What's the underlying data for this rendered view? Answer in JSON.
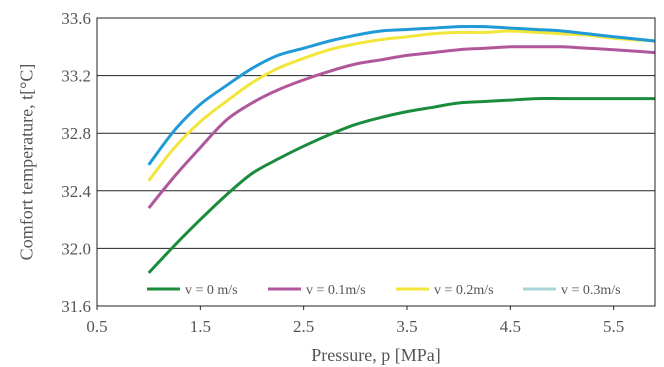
{
  "chart_data": {
    "type": "line",
    "title": "",
    "xlabel": "Pressure, p [MPa]",
    "ylabel": "Comfort temperature, t[°C]",
    "xlim": [
      0.5,
      5.9
    ],
    "ylim": [
      31.6,
      33.6
    ],
    "xticks": [
      0.5,
      1.5,
      2.5,
      3.5,
      4.5,
      5.5
    ],
    "xtick_labels": [
      "0.5",
      "1.5",
      "2.5",
      "3.5",
      "4.5",
      "5.5"
    ],
    "yticks": [
      31.6,
      32.0,
      32.4,
      32.8,
      33.2,
      33.6
    ],
    "ytick_labels": [
      "31.6",
      "32.0",
      "32.4",
      "32.8",
      "33.2",
      "33.6"
    ],
    "grid": "horizontal",
    "legend_position": "bottom-inside",
    "x": [
      1.0,
      1.25,
      1.5,
      1.75,
      2.0,
      2.25,
      2.5,
      2.75,
      3.0,
      3.25,
      3.5,
      3.75,
      4.0,
      4.25,
      4.5,
      4.75,
      5.0,
      5.25,
      5.5,
      5.9
    ],
    "series": [
      {
        "name": "v = 0 m/s",
        "color": "#1a8c3c",
        "values": [
          31.83,
          32.02,
          32.2,
          32.37,
          32.52,
          32.62,
          32.71,
          32.79,
          32.86,
          32.91,
          32.95,
          32.98,
          33.01,
          33.02,
          33.03,
          33.04,
          33.04,
          33.04,
          33.04,
          33.04
        ]
      },
      {
        "name": "v = 0.1m/s",
        "color": "#b0579c",
        "values": [
          32.28,
          32.5,
          32.7,
          32.89,
          33.01,
          33.1,
          33.17,
          33.23,
          33.28,
          33.31,
          33.34,
          33.36,
          33.38,
          33.39,
          33.4,
          33.4,
          33.4,
          33.39,
          33.38,
          33.36
        ]
      },
      {
        "name": "v = 0.2m/s",
        "color": "#f2e63a",
        "values": [
          32.47,
          32.7,
          32.88,
          33.02,
          33.15,
          33.25,
          33.32,
          33.38,
          33.42,
          33.45,
          33.47,
          33.49,
          33.5,
          33.5,
          33.51,
          33.5,
          33.49,
          33.48,
          33.46,
          33.44
        ]
      },
      {
        "name": "v = 0.3m/s",
        "color": "#1f9ad6",
        "legend_color": "#a8d4d8",
        "values": [
          32.58,
          32.82,
          33.0,
          33.13,
          33.25,
          33.34,
          33.39,
          33.44,
          33.48,
          33.51,
          33.52,
          33.53,
          33.54,
          33.54,
          33.53,
          33.52,
          33.51,
          33.49,
          33.47,
          33.44
        ]
      }
    ]
  }
}
